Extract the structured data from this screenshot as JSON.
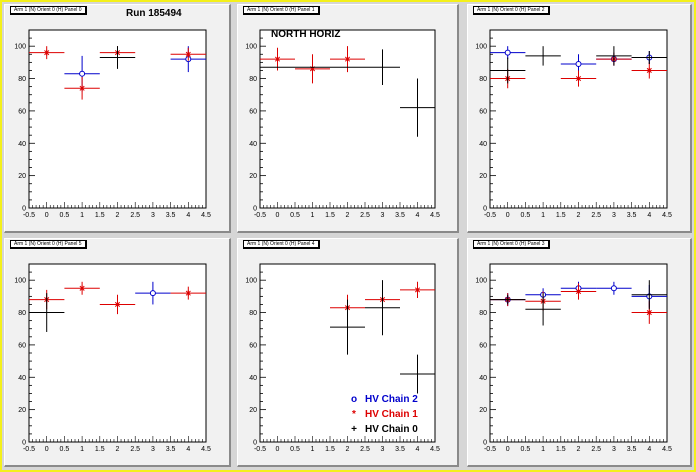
{
  "run_label": "Run 185494",
  "north_label": "NORTH HORIZ",
  "legend": [
    {
      "symbol": "o",
      "label": "HV Chain 2",
      "color": "#0000cc"
    },
    {
      "symbol": "*",
      "label": "HV Chain 1",
      "color": "#dd0000"
    },
    {
      "symbol": "+",
      "label": "HV Chain 0",
      "color": "#000000"
    }
  ],
  "colors": {
    "chain0": "#000000",
    "chain1": "#dd0000",
    "chain2": "#0000cc"
  },
  "chart_data": [
    {
      "type": "scatter",
      "title": "Arm 1 (N) Orient 0 (H) Panel 0",
      "xlim": [
        -0.5,
        4.5
      ],
      "ylim": [
        0,
        110
      ],
      "x_ticks": [
        "-0.5",
        "0",
        "0.5",
        "1",
        "1.5",
        "2",
        "2.5",
        "3",
        "3.5",
        "4",
        "4.5"
      ],
      "y_ticks": [
        "0",
        "20",
        "40",
        "60",
        "80",
        "100"
      ],
      "series": [
        {
          "name": "HV Chain 2",
          "points": [
            {
              "x": 1,
              "y": 83,
              "err": 11
            },
            {
              "x": 4,
              "y": 92,
              "err": 8
            }
          ]
        },
        {
          "name": "HV Chain 1",
          "points": [
            {
              "x": 0,
              "y": 96,
              "err": 4
            },
            {
              "x": 1,
              "y": 74,
              "err": 7
            },
            {
              "x": 2,
              "y": 96,
              "err": 4
            },
            {
              "x": 4,
              "y": 95,
              "err": 4
            }
          ]
        },
        {
          "name": "HV Chain 0",
          "points": [
            {
              "x": 2,
              "y": 93,
              "err": 7
            }
          ]
        }
      ]
    },
    {
      "type": "scatter",
      "title": "Arm 1 (N) Orient 0 (H) Panel 1",
      "xlim": [
        -0.5,
        4.5
      ],
      "ylim": [
        0,
        110
      ],
      "x_ticks": [
        "-0.5",
        "0",
        "0.5",
        "1",
        "1.5",
        "2",
        "2.5",
        "3",
        "3.5",
        "4",
        "4.5"
      ],
      "y_ticks": [
        "0",
        "20",
        "40",
        "60",
        "80",
        "100"
      ],
      "series": [
        {
          "name": "HV Chain 2",
          "points": []
        },
        {
          "name": "HV Chain 1",
          "points": [
            {
              "x": 0,
              "y": 92,
              "err": 7
            },
            {
              "x": 1,
              "y": 86,
              "err": 9
            },
            {
              "x": 2,
              "y": 92,
              "err": 8
            }
          ]
        },
        {
          "name": "HV Chain 0",
          "points": [
            {
              "x": 0,
              "y": 87,
              "err": 0
            },
            {
              "x": 1,
              "y": 87,
              "err": 0
            },
            {
              "x": 2,
              "y": 87,
              "err": 0
            },
            {
              "x": 3,
              "y": 87,
              "err": 11
            },
            {
              "x": 4,
              "y": 62,
              "err": 18
            }
          ]
        }
      ]
    },
    {
      "type": "scatter",
      "title": "Arm 1 (N) Orient 0 (H) Panel 2",
      "xlim": [
        -0.5,
        4.5
      ],
      "ylim": [
        0,
        110
      ],
      "x_ticks": [
        "-0.5",
        "0",
        "0.5",
        "1",
        "1.5",
        "2",
        "2.5",
        "3",
        "3.5",
        "4",
        "4.5"
      ],
      "y_ticks": [
        "0",
        "20",
        "40",
        "60",
        "80",
        "100"
      ],
      "series": [
        {
          "name": "HV Chain 2",
          "points": [
            {
              "x": 0,
              "y": 96,
              "err": 4
            },
            {
              "x": 2,
              "y": 89,
              "err": 6
            },
            {
              "x": 3,
              "y": 92,
              "err": 4
            },
            {
              "x": 4,
              "y": 93,
              "err": 4
            }
          ]
        },
        {
          "name": "HV Chain 1",
          "points": [
            {
              "x": 0,
              "y": 80,
              "err": 6
            },
            {
              "x": 2,
              "y": 80,
              "err": 5
            },
            {
              "x": 3,
              "y": 92,
              "err": 4
            },
            {
              "x": 4,
              "y": 85,
              "err": 5
            }
          ]
        },
        {
          "name": "HV Chain 0",
          "points": [
            {
              "x": 0,
              "y": 85,
              "err": 8
            },
            {
              "x": 1,
              "y": 94,
              "err": 6
            },
            {
              "x": 3,
              "y": 94,
              "err": 6
            },
            {
              "x": 4,
              "y": 93,
              "err": 4
            }
          ]
        }
      ]
    },
    {
      "type": "scatter",
      "title": "Arm 1 (N) Orient 0 (H) Panel 5",
      "xlim": [
        -0.5,
        4.5
      ],
      "ylim": [
        0,
        110
      ],
      "x_ticks": [
        "-0.5",
        "0",
        "0.5",
        "1",
        "1.5",
        "2",
        "2.5",
        "3",
        "3.5",
        "4",
        "4.5"
      ],
      "y_ticks": [
        "0",
        "20",
        "40",
        "60",
        "80",
        "100"
      ],
      "series": [
        {
          "name": "HV Chain 2",
          "points": [
            {
              "x": 3,
              "y": 92,
              "err": 7
            }
          ]
        },
        {
          "name": "HV Chain 1",
          "points": [
            {
              "x": 0,
              "y": 88,
              "err": 6
            },
            {
              "x": 1,
              "y": 95,
              "err": 4
            },
            {
              "x": 2,
              "y": 85,
              "err": 6
            },
            {
              "x": 4,
              "y": 92,
              "err": 4
            }
          ]
        },
        {
          "name": "HV Chain 0",
          "points": [
            {
              "x": 0,
              "y": 80,
              "err": 12
            }
          ]
        }
      ]
    },
    {
      "type": "scatter",
      "title": "Arm 1 (N) Orient 0 (H) Panel 4",
      "xlim": [
        -0.5,
        4.5
      ],
      "ylim": [
        0,
        110
      ],
      "x_ticks": [
        "-0.5",
        "0",
        "0.5",
        "1",
        "1.5",
        "2",
        "2.5",
        "3",
        "3.5",
        "4",
        "4.5"
      ],
      "y_ticks": [
        "0",
        "20",
        "40",
        "60",
        "80",
        "100"
      ],
      "series": [
        {
          "name": "HV Chain 2",
          "points": []
        },
        {
          "name": "HV Chain 1",
          "points": [
            {
              "x": 2,
              "y": 83,
              "err": 8
            },
            {
              "x": 3,
              "y": 88,
              "err": 6
            },
            {
              "x": 4,
              "y": 94,
              "err": 5
            }
          ]
        },
        {
          "name": "HV Chain 0",
          "points": [
            {
              "x": 2,
              "y": 71,
              "err": 17
            },
            {
              "x": 3,
              "y": 83,
              "err": 17
            },
            {
              "x": 4,
              "y": 42,
              "err": 12
            }
          ]
        }
      ]
    },
    {
      "type": "scatter",
      "title": "Arm 1 (N) Orient 0 (H) Panel 3",
      "xlim": [
        -0.5,
        4.5
      ],
      "ylim": [
        0,
        110
      ],
      "x_ticks": [
        "-0.5",
        "0",
        "0.5",
        "1",
        "1.5",
        "2",
        "2.5",
        "3",
        "3.5",
        "4",
        "4.5"
      ],
      "y_ticks": [
        "0",
        "20",
        "40",
        "60",
        "80",
        "100"
      ],
      "series": [
        {
          "name": "HV Chain 2",
          "points": [
            {
              "x": 0,
              "y": 88,
              "err": 4
            },
            {
              "x": 1,
              "y": 91,
              "err": 4
            },
            {
              "x": 2,
              "y": 95,
              "err": 4
            },
            {
              "x": 3,
              "y": 95,
              "err": 4
            },
            {
              "x": 4,
              "y": 90,
              "err": 7
            }
          ]
        },
        {
          "name": "HV Chain 1",
          "points": [
            {
              "x": 0,
              "y": 88,
              "err": 4
            },
            {
              "x": 1,
              "y": 87,
              "err": 6
            },
            {
              "x": 2,
              "y": 93,
              "err": 5
            },
            {
              "x": 4,
              "y": 80,
              "err": 7
            }
          ]
        },
        {
          "name": "HV Chain 0",
          "points": [
            {
              "x": 0,
              "y": 88,
              "err": 3
            },
            {
              "x": 1,
              "y": 82,
              "err": 10
            },
            {
              "x": 4,
              "y": 91,
              "err": 9
            }
          ]
        }
      ]
    }
  ]
}
